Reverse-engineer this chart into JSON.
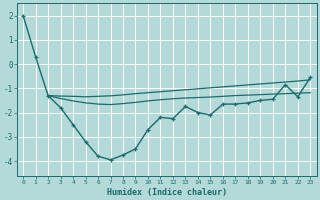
{
  "title": "",
  "xlabel": "Humidex (Indice chaleur)",
  "background_color": "#b3d9d9",
  "grid_color": "#e0f0f0",
  "line_color": "#1a6b6b",
  "xlim": [
    -0.5,
    23.5
  ],
  "ylim": [
    -4.6,
    2.5
  ],
  "yticks": [
    -4,
    -3,
    -2,
    -1,
    0,
    1,
    2
  ],
  "xticks": [
    0,
    1,
    2,
    3,
    4,
    5,
    6,
    7,
    8,
    9,
    10,
    11,
    12,
    13,
    14,
    15,
    16,
    17,
    18,
    19,
    20,
    21,
    22,
    23
  ],
  "line1_x": [
    0,
    1,
    2,
    3,
    4,
    5,
    6,
    7,
    8,
    9,
    10,
    11,
    12,
    13,
    14,
    15,
    16,
    17,
    18,
    19,
    20,
    21,
    22,
    23
  ],
  "line1_y": [
    2.0,
    0.3,
    -1.3,
    -1.8,
    -2.5,
    -3.2,
    -3.8,
    -3.95,
    -3.75,
    -3.5,
    -2.7,
    -2.2,
    -2.25,
    -1.75,
    -2.0,
    -2.1,
    -1.65,
    -1.65,
    -1.6,
    -1.5,
    -1.45,
    -0.85,
    -1.35,
    -0.55
  ],
  "line2_x": [
    2,
    3,
    4,
    5,
    6,
    7,
    8,
    9,
    10,
    11,
    12,
    13,
    14,
    15,
    16,
    17,
    18,
    19,
    20,
    21,
    22,
    23
  ],
  "line2_y": [
    -1.3,
    -1.32,
    -1.33,
    -1.35,
    -1.33,
    -1.31,
    -1.27,
    -1.22,
    -1.18,
    -1.14,
    -1.1,
    -1.06,
    -1.02,
    -0.98,
    -0.94,
    -0.9,
    -0.86,
    -0.82,
    -0.78,
    -0.74,
    -0.7,
    -0.65
  ],
  "line3_x": [
    2,
    3,
    4,
    5,
    6,
    7,
    8,
    9,
    10,
    11,
    12,
    13,
    14,
    15,
    16,
    17,
    18,
    19,
    20,
    21,
    22,
    23
  ],
  "line3_y": [
    -1.3,
    -1.42,
    -1.52,
    -1.6,
    -1.65,
    -1.67,
    -1.63,
    -1.58,
    -1.52,
    -1.47,
    -1.43,
    -1.4,
    -1.38,
    -1.36,
    -1.33,
    -1.3,
    -1.28,
    -1.26,
    -1.24,
    -1.22,
    -1.2,
    -1.18
  ]
}
